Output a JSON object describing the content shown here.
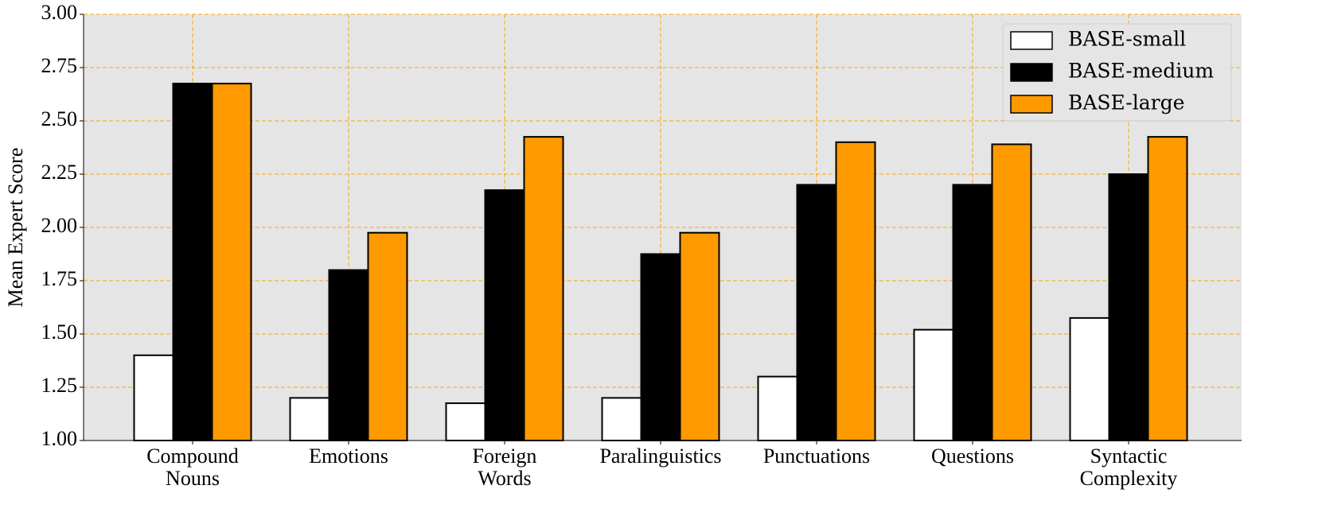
{
  "chart_data": {
    "type": "bar",
    "y_label": "Mean Expert Score",
    "categories": [
      "Compound\nNouns",
      "Emotions",
      "Foreign\nWords",
      "Paralinguistics",
      "Punctuations",
      "Questions",
      "Syntactic\nComplexity"
    ],
    "series": [
      {
        "name": "BASE-small",
        "color": "#ffffff",
        "values": [
          1.4,
          1.2,
          1.175,
          1.2,
          1.3,
          1.52,
          1.575
        ]
      },
      {
        "name": "BASE-medium",
        "color": "#000000",
        "values": [
          2.675,
          1.8,
          2.175,
          1.875,
          2.2,
          2.2,
          2.25
        ]
      },
      {
        "name": "BASE-large",
        "color": "#ff9900",
        "values": [
          2.675,
          1.975,
          2.425,
          1.975,
          2.4,
          2.39,
          2.425
        ]
      }
    ],
    "ylim": [
      1.0,
      3.0
    ],
    "yticks": [
      {
        "value": 1.0,
        "label": "1.00"
      },
      {
        "value": 1.25,
        "label": "1.25"
      },
      {
        "value": 1.5,
        "label": "1.50"
      },
      {
        "value": 1.75,
        "label": "1.75"
      },
      {
        "value": 2.0,
        "label": "2.00"
      },
      {
        "value": 2.25,
        "label": "2.25"
      },
      {
        "value": 2.5,
        "label": "2.50"
      },
      {
        "value": 2.75,
        "label": "2.75"
      },
      {
        "value": 3.0,
        "label": "3.00"
      }
    ],
    "grid": true,
    "grid_color": "#ffa500",
    "legend_position": "upper right"
  }
}
